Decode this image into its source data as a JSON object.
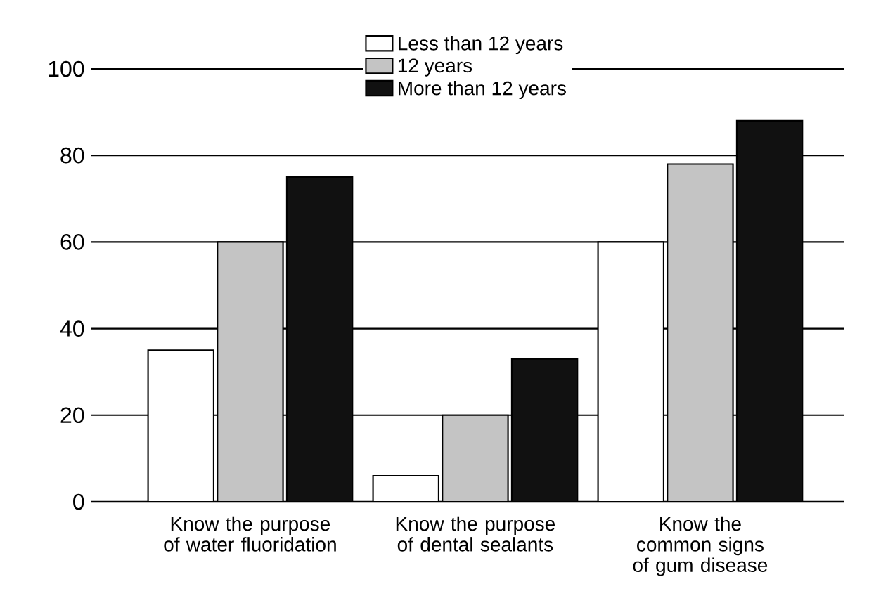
{
  "chart_data": {
    "type": "bar",
    "categories": [
      "Know the purpose of water fluoridation",
      "Know the purpose of dental sealants",
      "Know the common signs of gum disease"
    ],
    "series": [
      {
        "name": "Less than 12 years",
        "color": "#ffffff",
        "values": [
          35,
          6,
          60
        ]
      },
      {
        "name": "12 years",
        "color": "#c4c4c4",
        "values": [
          60,
          20,
          78
        ]
      },
      {
        "name": "More than 12 years",
        "color": "#111111",
        "values": [
          75,
          33,
          88
        ]
      }
    ],
    "ylim": [
      0,
      100
    ],
    "yticks": [
      0,
      20,
      40,
      60,
      80,
      100
    ],
    "grid": "y",
    "legend": "top"
  }
}
